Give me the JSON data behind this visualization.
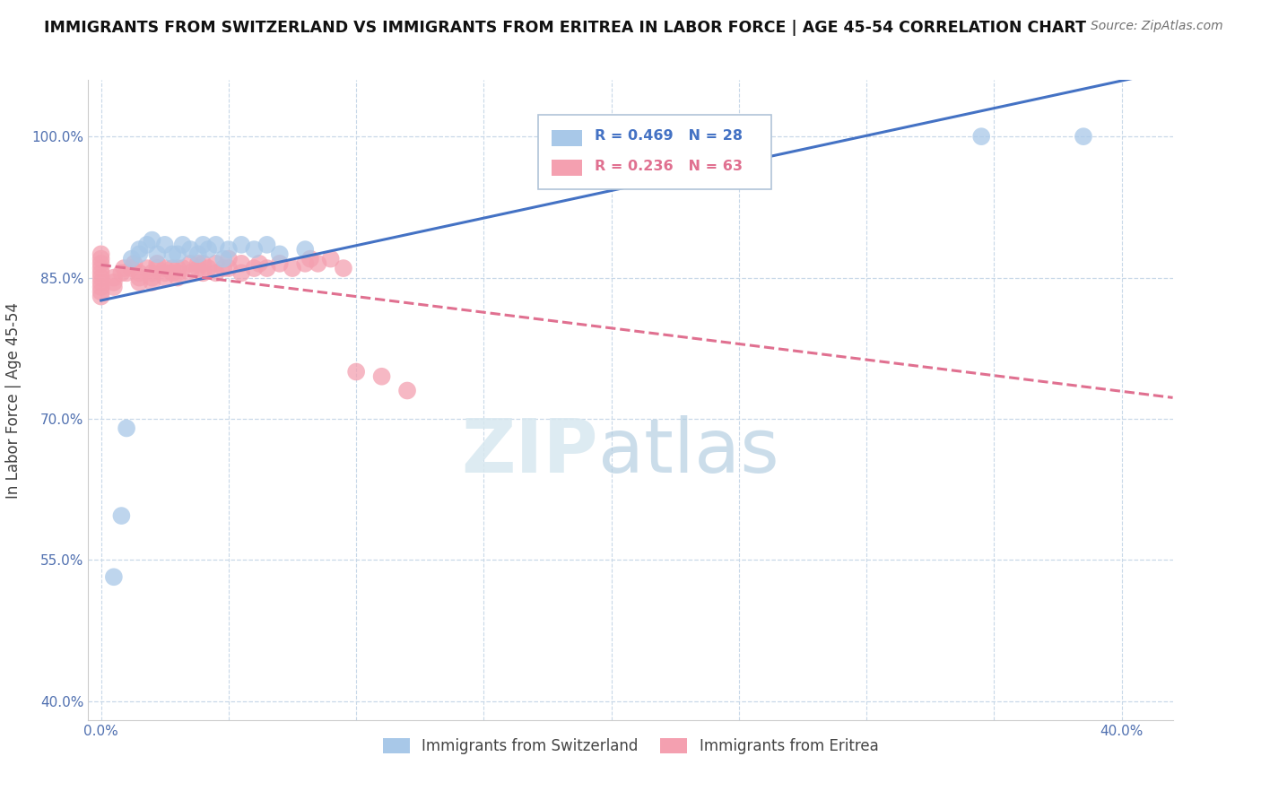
{
  "title": "IMMIGRANTS FROM SWITZERLAND VS IMMIGRANTS FROM ERITREA IN LABOR FORCE | AGE 45-54 CORRELATION CHART",
  "source": "Source: ZipAtlas.com",
  "ylabel": "In Labor Force | Age 45-54",
  "xlim": [
    -0.005,
    0.42
  ],
  "ylim": [
    0.38,
    1.06
  ],
  "xticks": [
    0.0,
    0.05,
    0.1,
    0.15,
    0.2,
    0.25,
    0.3,
    0.35,
    0.4
  ],
  "xticklabels": [
    "0.0%",
    "",
    "",
    "",
    "",
    "",
    "",
    "",
    "40.0%"
  ],
  "yticks": [
    0.4,
    0.55,
    0.7,
    0.85,
    1.0
  ],
  "yticklabels": [
    "40.0%",
    "55.0%",
    "70.0%",
    "85.0%",
    "100.0%"
  ],
  "swiss_color": "#a8c8e8",
  "eritrea_color": "#f4a0b0",
  "swiss_line_color": "#4472c4",
  "eritrea_line_color": "#e07090",
  "legend_swiss_R": 0.469,
  "legend_swiss_N": 28,
  "legend_eritrea_R": 0.236,
  "legend_eritrea_N": 63,
  "background_color": "#ffffff",
  "grid_color": "#c8d8e8",
  "swiss_x": [
    0.005,
    0.008,
    0.01,
    0.012,
    0.015,
    0.015,
    0.018,
    0.02,
    0.022,
    0.025,
    0.028,
    0.03,
    0.032,
    0.035,
    0.038,
    0.04,
    0.042,
    0.045,
    0.048,
    0.05,
    0.055,
    0.06,
    0.065,
    0.07,
    0.08,
    0.205,
    0.345,
    0.385
  ],
  "swiss_y": [
    0.532,
    0.597,
    0.69,
    0.87,
    0.88,
    0.875,
    0.885,
    0.89,
    0.875,
    0.885,
    0.875,
    0.875,
    0.885,
    0.88,
    0.875,
    0.885,
    0.88,
    0.885,
    0.87,
    0.88,
    0.885,
    0.88,
    0.885,
    0.875,
    0.88,
    1.0,
    1.0,
    1.0
  ],
  "eritrea_x": [
    0.0,
    0.0,
    0.0,
    0.0,
    0.0,
    0.0,
    0.0,
    0.0,
    0.0,
    0.0,
    0.005,
    0.005,
    0.005,
    0.008,
    0.009,
    0.01,
    0.012,
    0.013,
    0.015,
    0.015,
    0.015,
    0.018,
    0.02,
    0.02,
    0.02,
    0.022,
    0.022,
    0.025,
    0.025,
    0.025,
    0.028,
    0.028,
    0.03,
    0.03,
    0.03,
    0.032,
    0.035,
    0.035,
    0.038,
    0.038,
    0.04,
    0.04,
    0.042,
    0.045,
    0.045,
    0.048,
    0.05,
    0.05,
    0.055,
    0.055,
    0.06,
    0.062,
    0.065,
    0.07,
    0.075,
    0.08,
    0.082,
    0.085,
    0.09,
    0.095,
    0.1,
    0.11,
    0.12
  ],
  "eritrea_y": [
    0.83,
    0.835,
    0.84,
    0.845,
    0.85,
    0.855,
    0.86,
    0.865,
    0.87,
    0.875,
    0.84,
    0.845,
    0.85,
    0.855,
    0.86,
    0.855,
    0.86,
    0.865,
    0.845,
    0.85,
    0.855,
    0.86,
    0.845,
    0.85,
    0.855,
    0.86,
    0.865,
    0.85,
    0.855,
    0.86,
    0.855,
    0.86,
    0.85,
    0.855,
    0.86,
    0.86,
    0.855,
    0.865,
    0.86,
    0.865,
    0.855,
    0.865,
    0.86,
    0.855,
    0.865,
    0.86,
    0.86,
    0.87,
    0.855,
    0.865,
    0.86,
    0.865,
    0.86,
    0.865,
    0.86,
    0.865,
    0.87,
    0.865,
    0.87,
    0.86,
    0.75,
    0.745,
    0.73
  ]
}
